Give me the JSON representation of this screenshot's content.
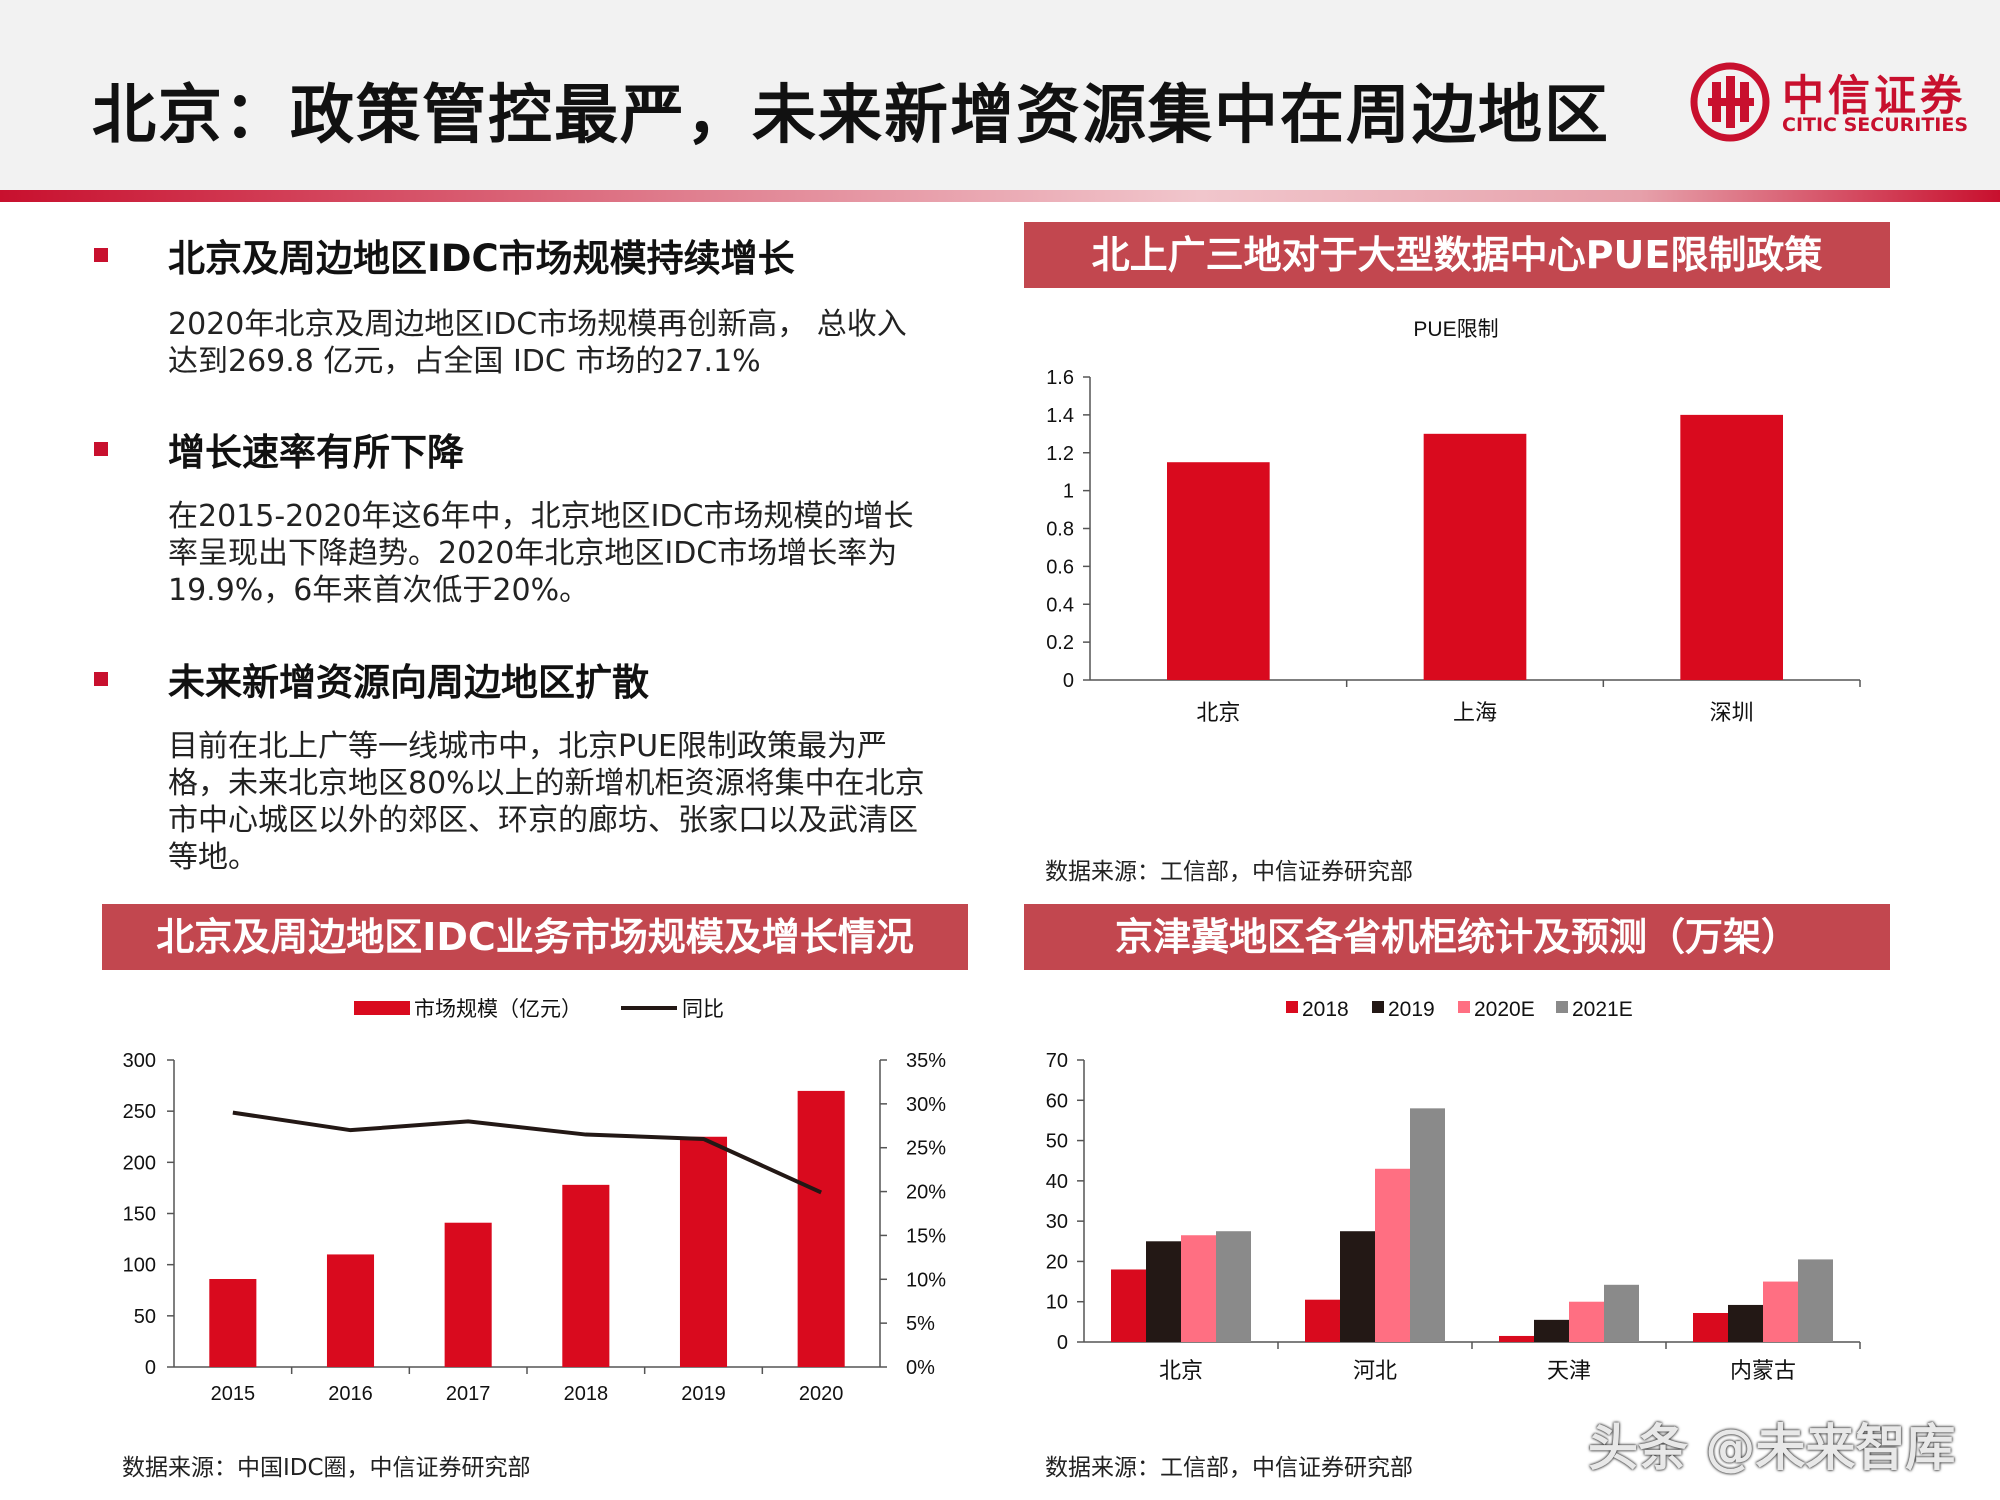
{
  "header": {
    "title": "北京：政策管控最严，未来新增资源集中在周边地区",
    "logo_cn": "中信证券",
    "logo_en": "CITIC SECURITIES",
    "accent": "#c8102e"
  },
  "bullets": [
    {
      "heading": "北京及周边地区IDC市场规模持续增长",
      "body": "2020年北京及周边地区IDC市场规模再创新高， 总收入达到269.8 亿元，占全国 IDC 市场的27.1%"
    },
    {
      "heading": "增长速率有所下降",
      "body": "在2015-2020年这6年中，北京地区IDC市场规模的增长率呈现出下降趋势。2020年北京地区IDC市场增长率为19.9%，6年来首次低于20%。"
    },
    {
      "heading": "未来新增资源向周边地区扩散",
      "body": "目前在北上广等一线城市中，北京PUE限制政策最为严格，未来北京地区80%以上的新增机柜资源将集中在北京市中心城区以外的郊区、环京的廊坊、张家口以及武清区等地。"
    }
  ],
  "panels": {
    "pue": {
      "banner": "北上广三地对于大型数据中心PUE限制政策",
      "source": "数据来源：工信部，中信证券研究部"
    },
    "idc": {
      "banner": "北京及周边地区IDC业务市场规模及增长情况",
      "source": "数据来源：中国IDC圈，中信证券研究部"
    },
    "cabinet": {
      "banner": "京津冀地区各省机柜统计及预测（万架）",
      "source": "数据来源：工信部，中信证券研究部"
    }
  },
  "watermark": "头条 @未来智库",
  "chart_data": [
    {
      "type": "bar",
      "title": "PUE限制",
      "categories": [
        "北京",
        "上海",
        "深圳"
      ],
      "values": [
        1.15,
        1.3,
        1.4
      ],
      "ylim": [
        0,
        1.6
      ],
      "yticks": [
        "0",
        "0.2",
        "0.4",
        "0.6",
        "0.8",
        "1",
        "1.2",
        "1.4",
        "1.6"
      ],
      "color": "#d90a1e",
      "grid": false
    },
    {
      "type": "bar",
      "categories": [
        "2015",
        "2016",
        "2017",
        "2018",
        "2019",
        "2020"
      ],
      "series": [
        {
          "name": "市场规模（亿元）",
          "type": "bar",
          "axis": "left",
          "color": "#d90a1e",
          "values": [
            86,
            110,
            141,
            178,
            225,
            269.8
          ]
        },
        {
          "name": "同比",
          "type": "line",
          "axis": "right",
          "color": "#231815",
          "values": [
            0.29,
            0.27,
            0.28,
            0.265,
            0.26,
            0.199
          ]
        }
      ],
      "ylim": [
        0,
        300
      ],
      "yticks": [
        "0",
        "50",
        "100",
        "150",
        "200",
        "250",
        "300"
      ],
      "y2lim": [
        0,
        0.35
      ],
      "y2ticks": [
        "0%",
        "5%",
        "10%",
        "15%",
        "20%",
        "25%",
        "30%",
        "35%"
      ],
      "legend": "top",
      "grid": false
    },
    {
      "type": "bar",
      "categories": [
        "北京",
        "河北",
        "天津",
        "内蒙古"
      ],
      "series": [
        {
          "name": "2018",
          "color": "#d90a1e",
          "values": [
            18,
            10.5,
            1.5,
            7.2
          ]
        },
        {
          "name": "2019",
          "color": "#231815",
          "values": [
            25,
            27.5,
            5.5,
            9.2
          ]
        },
        {
          "name": "2020E",
          "color": "#ff6f82",
          "values": [
            26.5,
            43,
            10,
            15
          ]
        },
        {
          "name": "2021E",
          "color": "#8a8a8a",
          "values": [
            27.5,
            58,
            14.2,
            20.5
          ]
        }
      ],
      "ylim": [
        0,
        70
      ],
      "yticks": [
        "0",
        "10",
        "20",
        "30",
        "40",
        "50",
        "60",
        "70"
      ],
      "legend": "top",
      "grid": false
    }
  ]
}
